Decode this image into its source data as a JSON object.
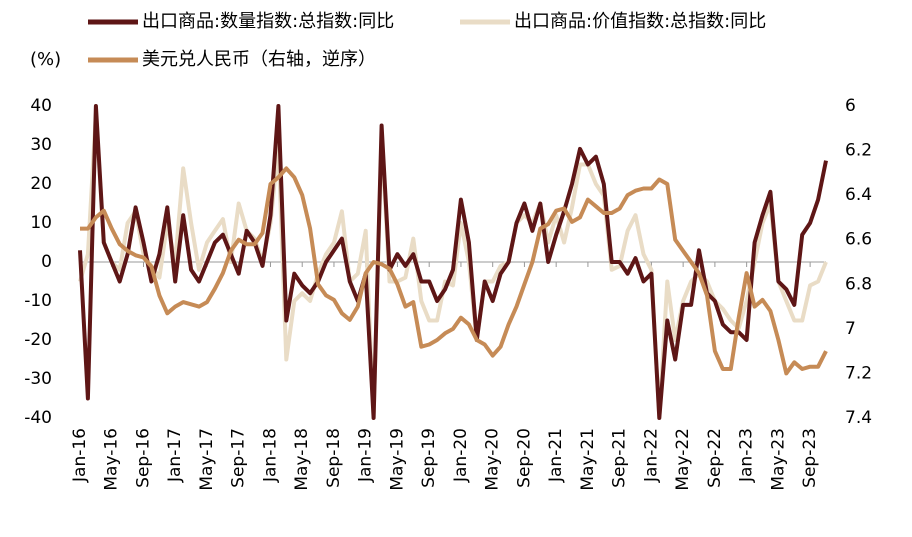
{
  "chart_data": {
    "type": "line",
    "y_axis_label": "(%)",
    "categories": [
      "Jan-16",
      null,
      null,
      null,
      "May-16",
      null,
      null,
      null,
      "Sep-16",
      null,
      null,
      null,
      "Jan-17",
      null,
      null,
      null,
      "May-17",
      null,
      null,
      null,
      "Sep-17",
      null,
      null,
      null,
      "Jan-18",
      null,
      null,
      null,
      "May-18",
      null,
      null,
      null,
      "Sep-18",
      null,
      null,
      null,
      "Jan-19",
      null,
      null,
      null,
      "May-19",
      null,
      null,
      null,
      "Sep-19",
      null,
      null,
      null,
      "Jan-20",
      null,
      null,
      null,
      "May-20",
      null,
      null,
      null,
      "Sep-20",
      null,
      null,
      null,
      "Jan-21",
      null,
      null,
      null,
      "May-21",
      null,
      null,
      null,
      "Sep-21",
      null,
      null,
      null,
      "Jan-22",
      null,
      null,
      null,
      "May-22",
      null,
      null,
      null,
      "Sep-22",
      null,
      null,
      null,
      "Jan-23",
      null,
      null,
      null,
      "May-23",
      null,
      null,
      null,
      "Sep-23",
      null,
      null
    ],
    "series": [
      {
        "name": "出口商品:数量指数:总指数:同比",
        "color": "#5e1616",
        "values": [
          3,
          -35,
          40,
          5,
          0,
          -5,
          2,
          14,
          5,
          -5,
          2,
          14,
          -5,
          12,
          -2,
          -5,
          0,
          5,
          7,
          2,
          -3,
          8,
          5,
          -1,
          12,
          40,
          -15,
          -3,
          -6,
          -8,
          -5,
          0,
          3,
          6,
          -5,
          -10,
          -3,
          -40,
          35,
          -2,
          2,
          -1,
          2,
          -5,
          -5,
          -10,
          -7,
          -2,
          16,
          5,
          -20,
          -5,
          -10,
          -3,
          0,
          10,
          15,
          8,
          15,
          0,
          7,
          13,
          20,
          29,
          25,
          27,
          20,
          0,
          0,
          -3,
          1,
          -5,
          -3,
          -40,
          -15,
          -25,
          -11,
          -11,
          3,
          -8,
          -10,
          -16,
          -18,
          -18,
          -20,
          5,
          12,
          18,
          -5,
          -7,
          -11,
          7,
          10,
          16,
          26
        ]
      },
      {
        "name": "出口商品:价值指数:总指数:同比",
        "color": "#e9dcc6",
        "values": [
          -5,
          2,
          38,
          5,
          0,
          -2,
          10,
          13,
          2,
          -1,
          -4,
          10,
          0,
          24,
          10,
          -2,
          5,
          8,
          11,
          0,
          15,
          8,
          6,
          0,
          10,
          30,
          -25,
          -10,
          -8,
          -10,
          -3,
          2,
          5,
          13,
          -5,
          -3,
          8,
          -40,
          32,
          -5,
          -5,
          -4,
          6,
          -10,
          -15,
          -15,
          -5,
          -6,
          10,
          0,
          -20,
          -5,
          -5,
          -1,
          0,
          10,
          12,
          10,
          15,
          5,
          12,
          5,
          14,
          25,
          25,
          20,
          17,
          -2,
          -1,
          8,
          12,
          2,
          -2,
          -40,
          -5,
          -20,
          -10,
          -5,
          -3,
          -5,
          -10,
          -12,
          -15,
          -17,
          -10,
          0,
          10,
          15,
          -5,
          -10,
          -15,
          -15,
          -6,
          -5,
          0
        ]
      },
      {
        "name": "美元兑人民币（右轴，逆序）",
        "color": "#c68b56",
        "axis": "y2",
        "values": [
          6.55,
          6.55,
          6.5,
          6.47,
          6.55,
          6.62,
          6.65,
          6.67,
          6.68,
          6.72,
          6.85,
          6.93,
          6.9,
          6.88,
          6.89,
          6.9,
          6.88,
          6.82,
          6.75,
          6.65,
          6.6,
          6.62,
          6.62,
          6.57,
          6.35,
          6.32,
          6.28,
          6.32,
          6.4,
          6.55,
          6.8,
          6.85,
          6.87,
          6.93,
          6.96,
          6.9,
          6.75,
          6.7,
          6.71,
          6.73,
          6.8,
          6.9,
          6.88,
          7.08,
          7.07,
          7.05,
          7.02,
          7.0,
          6.95,
          6.98,
          7.05,
          7.07,
          7.12,
          7.08,
          6.98,
          6.9,
          6.8,
          6.7,
          6.55,
          6.53,
          6.47,
          6.46,
          6.52,
          6.5,
          6.42,
          6.45,
          6.48,
          6.48,
          6.46,
          6.4,
          6.38,
          6.37,
          6.37,
          6.33,
          6.35,
          6.6,
          6.65,
          6.7,
          6.75,
          6.85,
          7.1,
          7.18,
          7.18,
          6.95,
          6.75,
          6.9,
          6.87,
          6.92,
          7.05,
          7.2,
          7.15,
          7.18,
          7.17,
          7.17,
          7.1
        ]
      }
    ],
    "ylim": [
      -40,
      40
    ],
    "yticks": [
      -40,
      -30,
      -20,
      -10,
      0,
      10,
      20,
      30,
      40
    ],
    "y2lim": [
      6,
      7.4
    ],
    "y2ticks": [
      6,
      6.2,
      6.4,
      6.6,
      6.8,
      7,
      7.2,
      7.4
    ],
    "y2_inverted": true,
    "grid": false
  }
}
